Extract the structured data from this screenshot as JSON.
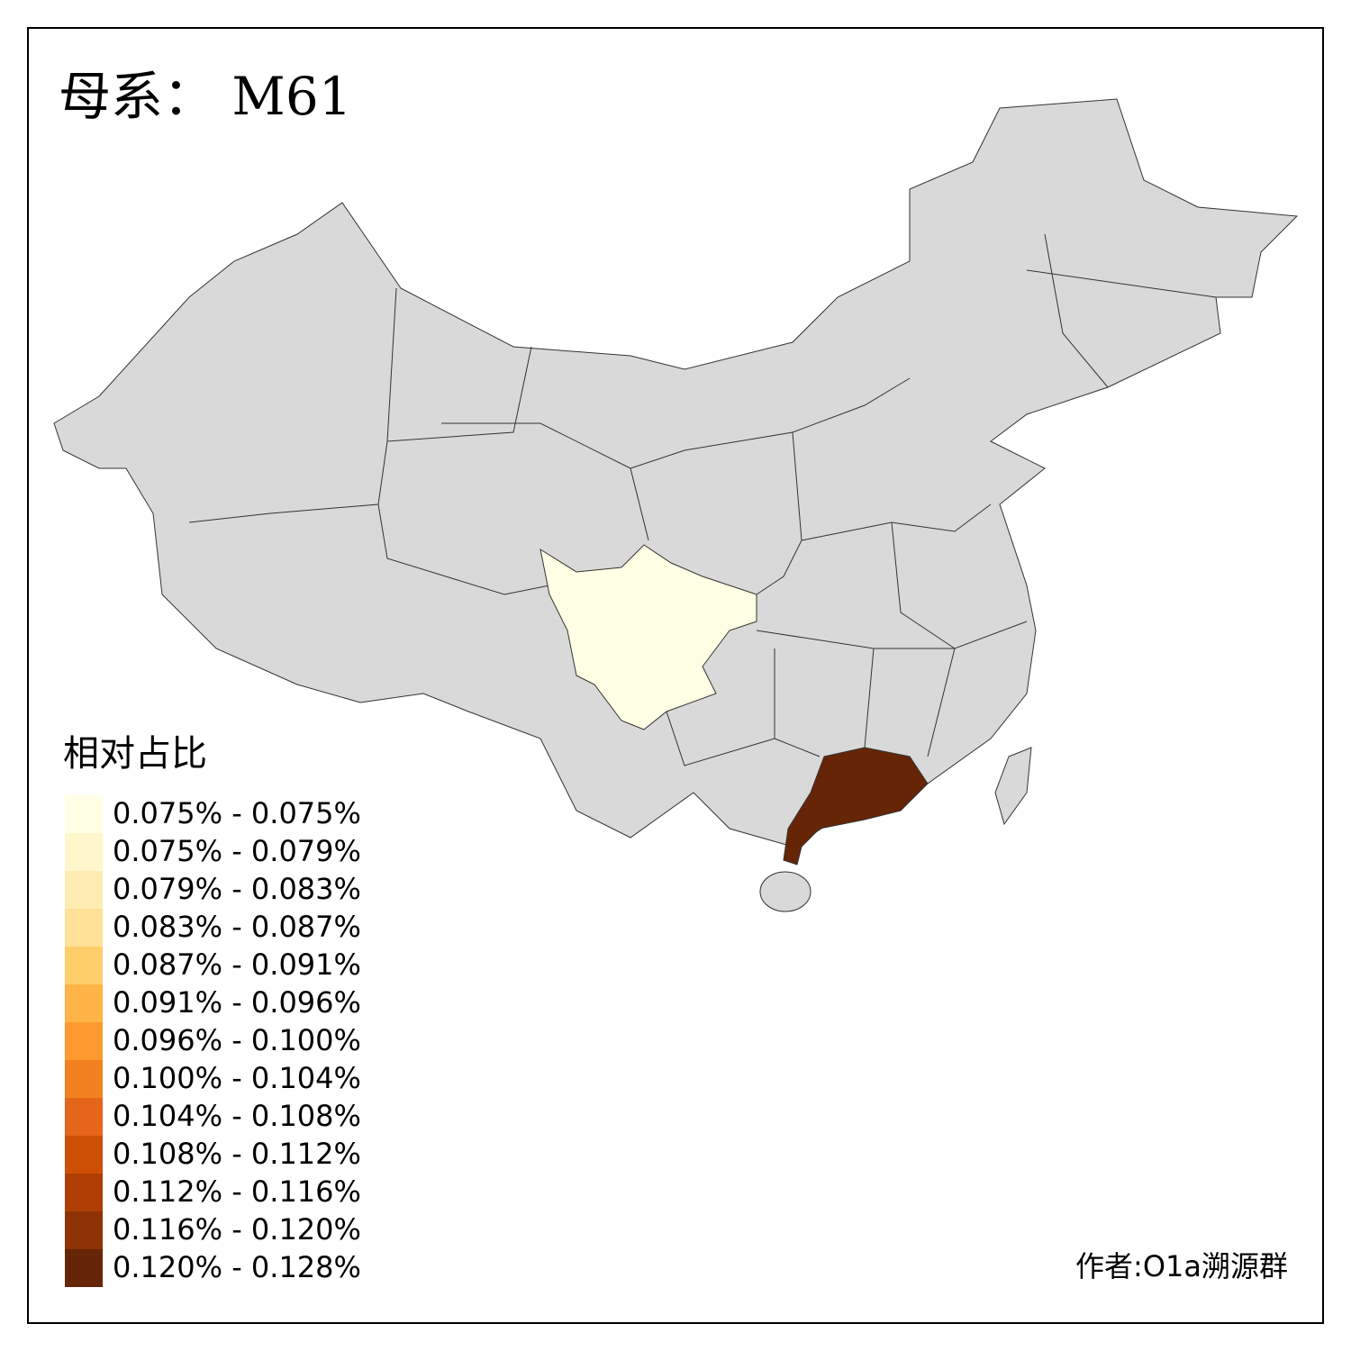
{
  "title": "母系： M61",
  "legend": {
    "title": "相对占比",
    "items": [
      {
        "label": "0.075% - 0.075%",
        "color": "#ffffe5"
      },
      {
        "label": "0.075% - 0.079%",
        "color": "#fff6cc"
      },
      {
        "label": "0.079% - 0.083%",
        "color": "#feecb3"
      },
      {
        "label": "0.083% - 0.087%",
        "color": "#fee097"
      },
      {
        "label": "0.087% - 0.091%",
        "color": "#fece6b"
      },
      {
        "label": "0.091% - 0.096%",
        "color": "#feb447"
      },
      {
        "label": "0.096% - 0.100%",
        "color": "#fd9a2f"
      },
      {
        "label": "0.100% - 0.104%",
        "color": "#f3811f"
      },
      {
        "label": "0.104% - 0.108%",
        "color": "#e5661a"
      },
      {
        "label": "0.108% - 0.112%",
        "color": "#cd4f04"
      },
      {
        "label": "0.112% - 0.116%",
        "color": "#b03e04"
      },
      {
        "label": "0.116% - 0.120%",
        "color": "#8d3205"
      },
      {
        "label": "0.120% - 0.128%",
        "color": "#662506"
      }
    ]
  },
  "credit": "作者:O1a溯源群"
}
